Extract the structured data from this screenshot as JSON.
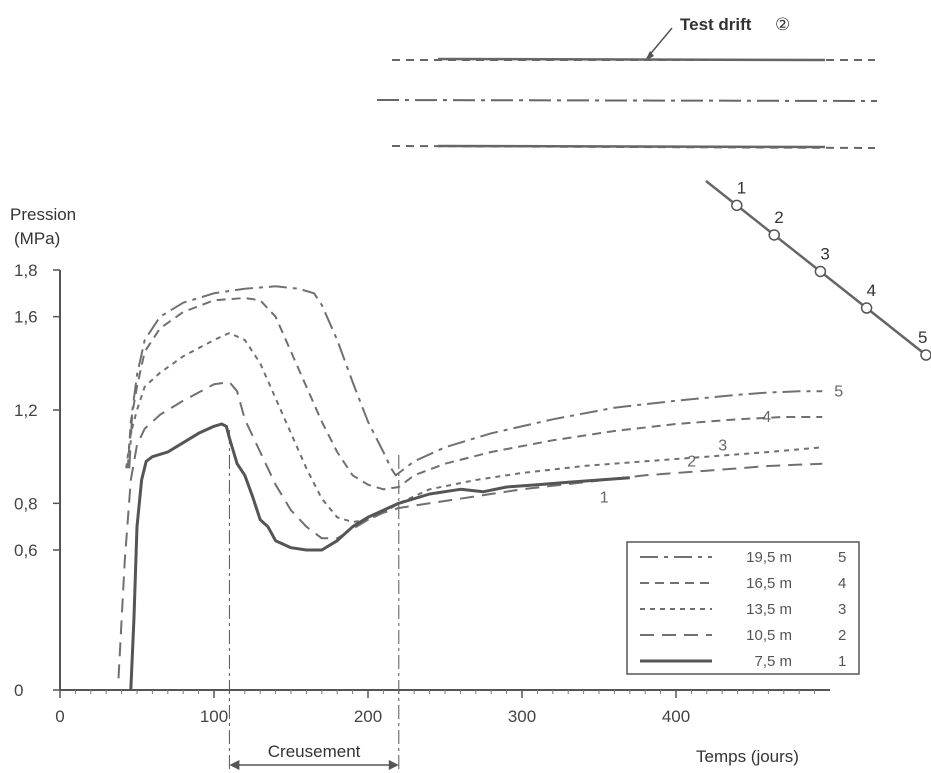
{
  "chart_data": {
    "type": "line",
    "xlabel": "Temps (jours)",
    "ylabel": "Pression",
    "ylabel_unit": "(MPa)",
    "xlim": [
      0,
      500
    ],
    "ylim": [
      0,
      1.8
    ],
    "x_ticks": [
      "0",
      "100",
      "200",
      "300",
      "400"
    ],
    "x_tick_values": [
      0,
      100,
      200,
      300,
      400
    ],
    "y_ticks": [
      "0",
      "0,6",
      "0,8",
      "1,2",
      "1,6",
      "1,8"
    ],
    "y_tick_values": [
      0,
      0.6,
      0.8,
      1.2,
      1.6,
      1.8
    ],
    "grid": false,
    "legend_position": "bottom-right",
    "annotation": {
      "label": "Creusement",
      "x_start": 110,
      "x_end": 220
    },
    "series": [
      {
        "name": "19,5 m",
        "tag": "5",
        "color": "#707070",
        "dash": "dashdot",
        "x": [
          45,
          47,
          50,
          55,
          65,
          80,
          100,
          120,
          140,
          155,
          165,
          170,
          180,
          190,
          200,
          210,
          215,
          218,
          220,
          230,
          250,
          280,
          320,
          360,
          400,
          440,
          460,
          480,
          495
        ],
        "y": [
          0.95,
          1.2,
          1.35,
          1.5,
          1.6,
          1.66,
          1.7,
          1.72,
          1.73,
          1.72,
          1.7,
          1.65,
          1.5,
          1.32,
          1.15,
          1.02,
          0.95,
          0.92,
          0.93,
          0.98,
          1.04,
          1.1,
          1.16,
          1.21,
          1.24,
          1.265,
          1.275,
          1.28,
          1.28
        ]
      },
      {
        "name": "16,5 m",
        "tag": "4",
        "color": "#707070",
        "dash": "dash",
        "x": [
          44,
          46,
          50,
          55,
          65,
          80,
          100,
          120,
          130,
          140,
          150,
          160,
          170,
          180,
          190,
          200,
          210,
          220,
          230,
          250,
          280,
          320,
          360,
          400,
          440,
          470,
          495
        ],
        "y": [
          0.95,
          1.15,
          1.3,
          1.45,
          1.55,
          1.62,
          1.67,
          1.68,
          1.67,
          1.6,
          1.45,
          1.3,
          1.15,
          1.02,
          0.92,
          0.88,
          0.86,
          0.87,
          0.92,
          0.97,
          1.02,
          1.07,
          1.11,
          1.14,
          1.16,
          1.17,
          1.17
        ]
      },
      {
        "name": "13,5 m",
        "tag": "3",
        "color": "#707070",
        "dash": "shortdash",
        "x": [
          43,
          46,
          50,
          55,
          65,
          80,
          100,
          110,
          120,
          130,
          140,
          150,
          160,
          170,
          180,
          190,
          200,
          210,
          220,
          240,
          270,
          300,
          340,
          380,
          420,
          460,
          495
        ],
        "y": [
          0.95,
          1.1,
          1.2,
          1.3,
          1.36,
          1.43,
          1.5,
          1.53,
          1.5,
          1.4,
          1.25,
          1.1,
          0.95,
          0.82,
          0.74,
          0.72,
          0.73,
          0.76,
          0.8,
          0.86,
          0.9,
          0.93,
          0.96,
          0.98,
          1.0,
          1.02,
          1.04
        ]
      },
      {
        "name": "10,5 m",
        "tag": "2",
        "color": "#707070",
        "dash": "longdash",
        "x": [
          38,
          42,
          46,
          50,
          55,
          65,
          80,
          100,
          110,
          115,
          120,
          130,
          140,
          150,
          160,
          170,
          180,
          190,
          200,
          210,
          220,
          240,
          270,
          300,
          340,
          380,
          420,
          460,
          495
        ],
        "y": [
          0.05,
          0.55,
          0.9,
          1.05,
          1.12,
          1.18,
          1.24,
          1.31,
          1.32,
          1.28,
          1.16,
          1.02,
          0.88,
          0.77,
          0.7,
          0.65,
          0.65,
          0.69,
          0.73,
          0.76,
          0.78,
          0.8,
          0.83,
          0.86,
          0.89,
          0.92,
          0.94,
          0.96,
          0.97
        ]
      },
      {
        "name": "7,5 m",
        "tag": "1",
        "color": "#555555",
        "dash": "solid",
        "x": [
          46,
          48,
          50,
          53,
          56,
          60,
          70,
          80,
          90,
          100,
          105,
          108,
          110,
          115,
          120,
          125,
          130,
          135,
          140,
          150,
          160,
          170,
          180,
          190,
          200,
          210,
          220,
          240,
          260,
          275,
          290,
          310,
          330,
          350,
          370
        ],
        "y": [
          0.0,
          0.3,
          0.7,
          0.9,
          0.98,
          1.0,
          1.02,
          1.06,
          1.1,
          1.13,
          1.14,
          1.13,
          1.08,
          0.97,
          0.92,
          0.83,
          0.73,
          0.7,
          0.64,
          0.61,
          0.6,
          0.6,
          0.64,
          0.7,
          0.74,
          0.77,
          0.8,
          0.84,
          0.86,
          0.85,
          0.87,
          0.88,
          0.89,
          0.9,
          0.91
        ]
      }
    ]
  },
  "inset": {
    "title": "Test drift",
    "title_symbol": "②",
    "point_labels": [
      "1",
      "2",
      "3",
      "4",
      "5"
    ]
  }
}
